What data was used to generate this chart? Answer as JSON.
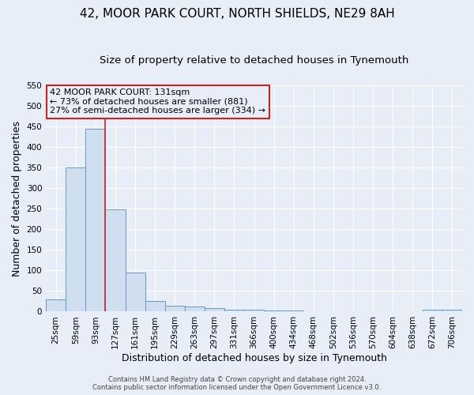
{
  "title": "42, MOOR PARK COURT, NORTH SHIELDS, NE29 8AH",
  "subtitle": "Size of property relative to detached houses in Tynemouth",
  "xlabel": "Distribution of detached houses by size in Tynemouth",
  "ylabel": "Number of detached properties",
  "bin_labels": [
    "25sqm",
    "59sqm",
    "93sqm",
    "127sqm",
    "161sqm",
    "195sqm",
    "229sqm",
    "263sqm",
    "297sqm",
    "331sqm",
    "366sqm",
    "400sqm",
    "434sqm",
    "468sqm",
    "502sqm",
    "536sqm",
    "570sqm",
    "604sqm",
    "638sqm",
    "672sqm",
    "706sqm"
  ],
  "bar_values": [
    30,
    350,
    445,
    248,
    95,
    25,
    15,
    12,
    8,
    5,
    4,
    3,
    3,
    0,
    0,
    0,
    0,
    0,
    0,
    4,
    4
  ],
  "bar_color": "#cfdff0",
  "bar_edge_color": "#6699cc",
  "ylim": [
    0,
    550
  ],
  "yticks": [
    0,
    50,
    100,
    150,
    200,
    250,
    300,
    350,
    400,
    450,
    500,
    550
  ],
  "vline_color": "#cc2222",
  "vline_x_index": 3,
  "annotation_title": "42 MOOR PARK COURT: 131sqm",
  "annotation_line1": "← 73% of detached houses are smaller (881)",
  "annotation_line2": "27% of semi-detached houses are larger (334) →",
  "annotation_box_color": "#cc2222",
  "footer_line1": "Contains HM Land Registry data © Crown copyright and database right 2024.",
  "footer_line2": "Contains public sector information licensed under the Open Government Licence v3.0.",
  "background_color": "#e8eef8",
  "grid_color": "#ffffff",
  "title_fontsize": 11,
  "subtitle_fontsize": 9.5,
  "xlabel_fontsize": 9,
  "ylabel_fontsize": 9,
  "tick_fontsize": 7.5,
  "footer_fontsize": 6,
  "annotation_fontsize": 8
}
